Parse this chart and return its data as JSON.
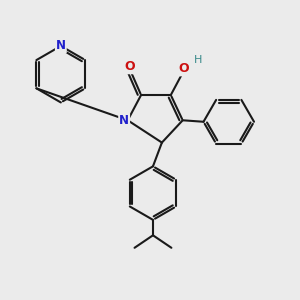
{
  "bg_color": "#ebebeb",
  "bond_color": "#1a1a1a",
  "N_color": "#2020cc",
  "O_color": "#cc1010",
  "H_color": "#3a8a8a",
  "linewidth": 1.5,
  "figsize": [
    3.0,
    3.0
  ],
  "dpi": 100,
  "xlim": [
    0,
    10
  ],
  "ylim": [
    0,
    10
  ]
}
